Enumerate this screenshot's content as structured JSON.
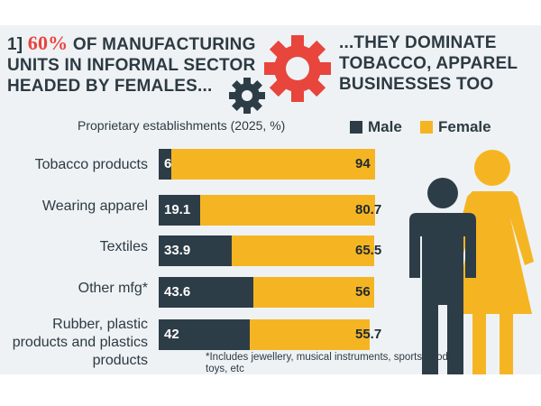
{
  "headline_left": {
    "prefix": "1] ",
    "highlight": "60%",
    "text": " OF MANUFACTURING UNITS IN INFORMAL SECTOR HEADED BY FEMALES..."
  },
  "headline_right": "...THEY DOMINATE TOBACCO, APPAREL BUSINESSES TOO",
  "footnote": "*Includes jewellery, musical instruments, sports goods, toys, etc",
  "colors": {
    "male": "#2d3d47",
    "female": "#f5b523",
    "accent_red": "#e8453c",
    "background": "#eef2f5"
  },
  "icons": [
    "gear-icon",
    "male-figure-icon",
    "female-figure-icon"
  ],
  "chart_data": {
    "type": "bar",
    "orientation": "horizontal",
    "stacked": true,
    "title": "Proprietary establishments (2025, %)",
    "categories": [
      "Tobacco products",
      "Wearing apparel",
      "Textiles",
      "Other mfg*",
      "Rubber, plastic products and plastics products"
    ],
    "series": [
      {
        "name": "Male",
        "values": [
          6,
          19.1,
          33.9,
          43.6,
          42
        ],
        "labels": [
          "6",
          "19.1",
          "33.9",
          "43.6",
          "42"
        ]
      },
      {
        "name": "Female",
        "values": [
          94,
          80.7,
          65.5,
          56,
          55.7
        ],
        "labels": [
          "94",
          "80.7",
          "65.5",
          "56",
          "55.7"
        ]
      }
    ],
    "xlim": [
      0,
      100
    ],
    "legend": "top-right",
    "grid": false
  }
}
